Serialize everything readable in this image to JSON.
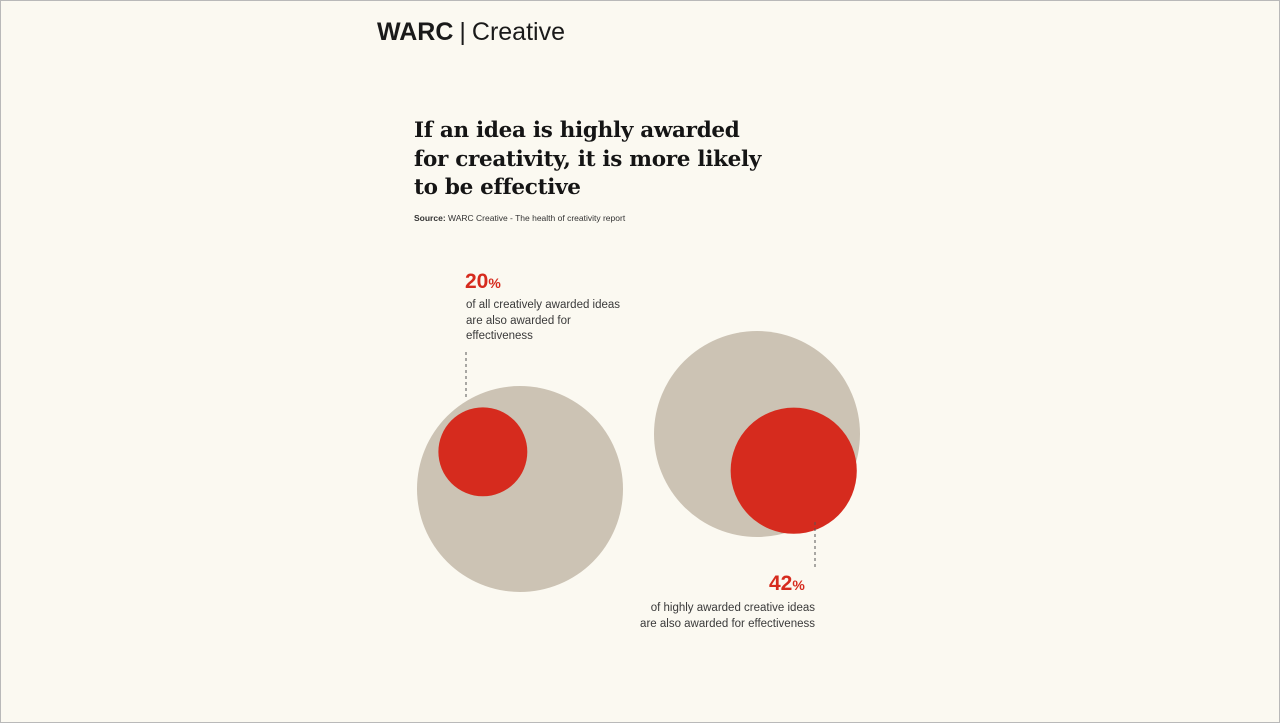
{
  "brand": {
    "name": "WARC",
    "divider": "|",
    "product": "Creative"
  },
  "title": "If an idea is highly awarded for creativity, it is more likely to be effective",
  "source": {
    "label": "Source:",
    "text": "WARC Creative - The health of creativity report"
  },
  "colors": {
    "background": "#fbf9f1",
    "outer_circle": "#ccc3b4",
    "inner_circle": "#d62b1e",
    "accent_text": "#d62b1e"
  },
  "chart_data": {
    "type": "proportional-area",
    "items": [
      {
        "value": 20,
        "value_label": "20",
        "unit": "%",
        "description": "of all creatively awarded ideas are also awarded for effectiveness"
      },
      {
        "value": 42,
        "value_label": "42",
        "unit": "%",
        "description": "of highly awarded creative ideas are also awarded for effectiveness"
      }
    ]
  }
}
